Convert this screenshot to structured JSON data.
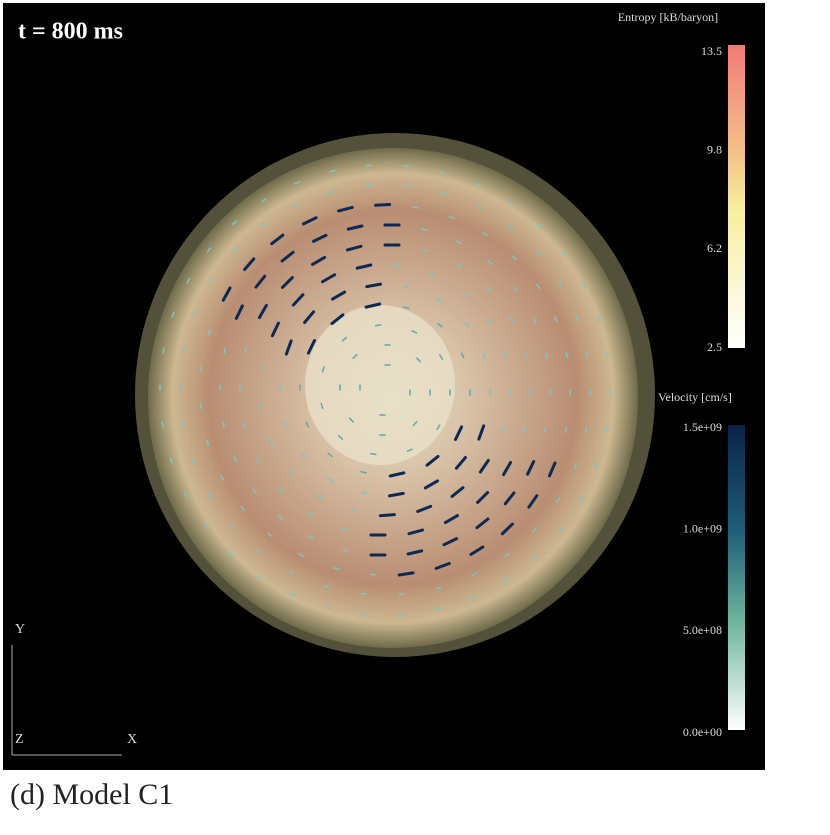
{
  "panel": {
    "time_label": "t = 800 ms",
    "entropy_colorbar": {
      "title": "Entropy [kB/baryon]",
      "ticks": [
        "13.5",
        "9.8",
        "6.2",
        "2.5"
      ]
    },
    "velocity_colorbar": {
      "title": "Velocity [cm/s]",
      "ticks": [
        "1.5e+09",
        "1.0e+09",
        "5.0e+08",
        "0.0e+00"
      ]
    },
    "axes": {
      "y": "Y",
      "z": "Z",
      "x": "X"
    }
  },
  "caption": "(d) Model C1"
}
